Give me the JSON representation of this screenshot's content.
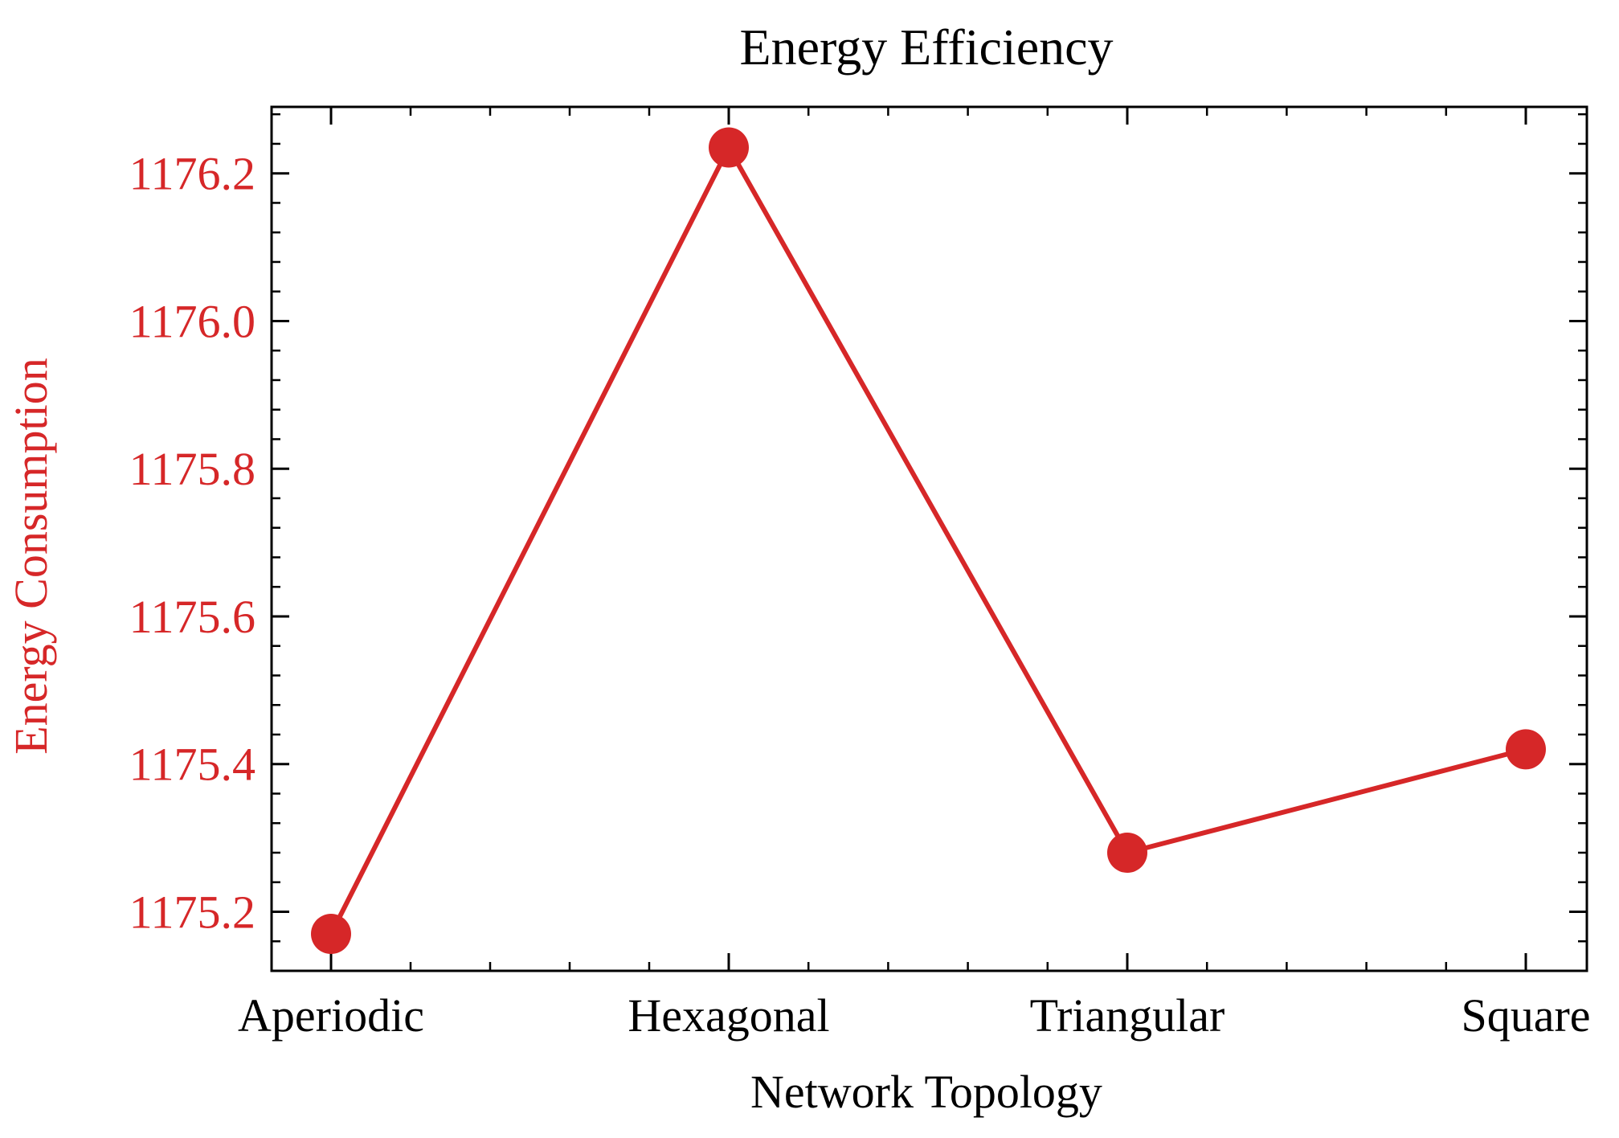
{
  "chart_data": {
    "type": "line",
    "title": "Energy Efficiency",
    "xlabel": "Network Topology",
    "ylabel": "Energy Consumption",
    "categories": [
      "Aperiodic",
      "Hexagonal",
      "Triangular",
      "Square"
    ],
    "series": [
      {
        "values": [
          1175.17,
          1176.235,
          1175.28,
          1175.42
        ],
        "color": "#d62728",
        "marker": "circle"
      }
    ],
    "ylim": [
      1175.12,
      1176.29
    ],
    "y_ticks": [
      1175.2,
      1175.4,
      1175.6,
      1175.8,
      1176.0,
      1176.2
    ],
    "y_tick_labels": [
      "1175.2",
      "1175.4",
      "1175.6",
      "1175.8",
      "1176.0",
      "1176.2"
    ],
    "ylabel_color": "#d62728",
    "ytick_color": "#d62728",
    "grid": false,
    "legend": "none"
  }
}
